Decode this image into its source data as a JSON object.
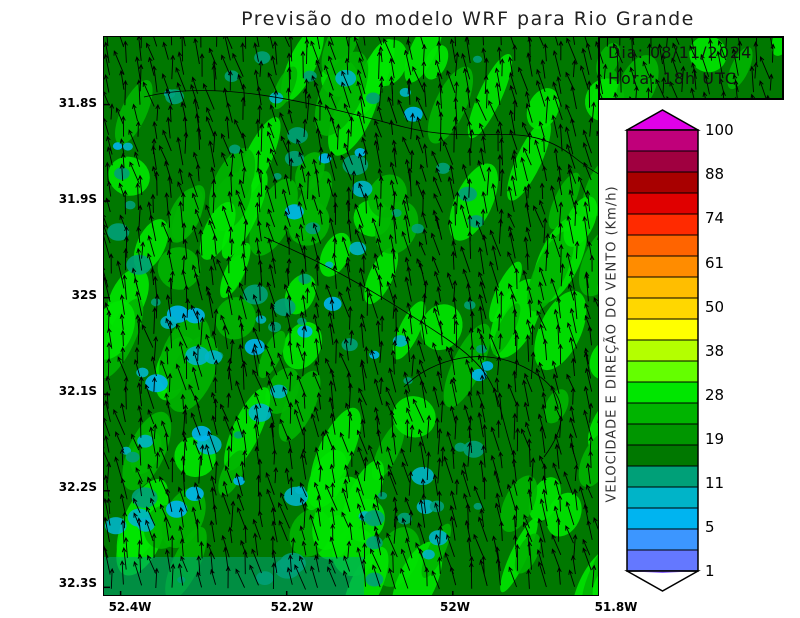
{
  "title": "Previsão do modelo WRF para Rio Grande",
  "info": {
    "date": "Dia: 08/11/2024",
    "time": "Hora: 18h UTC"
  },
  "axes": {
    "y_ticks": [
      "31.8S",
      "31.9S",
      "32S",
      "32.1S",
      "32.2S",
      "32.3S"
    ],
    "y_values": [
      -31.8,
      -31.9,
      -32.0,
      -32.1,
      -32.2,
      -32.3
    ],
    "x_ticks": [
      "52.4W",
      "52.2W",
      "52W",
      "51.8W"
    ],
    "x_values": [
      -52.4,
      -52.2,
      -52.0,
      -51.8
    ],
    "lat_range": [
      -32.31,
      -31.73
    ],
    "lon_range": [
      -52.42,
      -51.6
    ]
  },
  "legend": {
    "title": "VELOCIDADE E DIREÇÃO DO VENTO (Km/h)",
    "labels": [
      "100",
      "88",
      "74",
      "61",
      "50",
      "38",
      "28",
      "19",
      "11",
      "5",
      "1"
    ],
    "colors": [
      "#e000e8",
      "#c0007a",
      "#a00040",
      "#a80000",
      "#e00000",
      "#ff2a00",
      "#ff6400",
      "#ff8c00",
      "#ffbe00",
      "#ffd700",
      "#ffff00",
      "#b4ff00",
      "#64ff00",
      "#00e600",
      "#00b400",
      "#009600",
      "#007800",
      "#00a078",
      "#00b4c8",
      "#00b4f0",
      "#3c96ff",
      "#6478ff",
      "#8c64ff"
    ]
  },
  "field_colors": {
    "dark_green": "#007800",
    "green": "#00b400",
    "bright_green": "#00e600",
    "teal": "#00a078",
    "cyan": "#00b4c8",
    "blue": "#00b4f0"
  },
  "wind_arrows": {
    "predominant_direction": "north-northwest",
    "color": "#000000"
  }
}
